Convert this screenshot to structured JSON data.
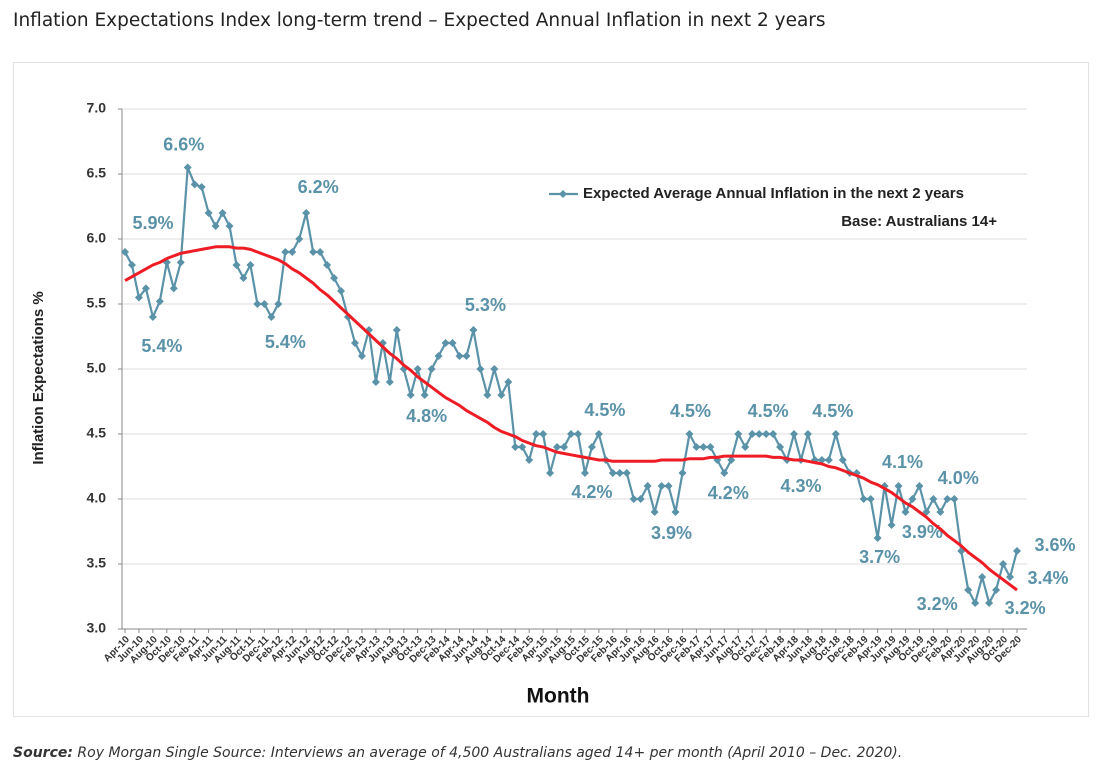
{
  "page": {
    "title": "Inflation Expectations Index long-term trend – Expected Annual Inflation in next 2 years",
    "source_label": "Source:",
    "source_text": "Roy Morgan Single Source: Interviews an average of 4,500 Australians aged 14+ per month (April 2010 – Dec. 2020)."
  },
  "chart_data": {
    "type": "line",
    "annotation": "Base: Australians 14+",
    "xlabel": "Month",
    "ylabel": "Inflation Expectations %",
    "legend": "upper right",
    "grid": true,
    "ylim": [
      3,
      7
    ],
    "yticks": [
      {
        "value": 3,
        "label": "3.0"
      },
      {
        "value": 3.5,
        "label": "3.5"
      },
      {
        "value": 4,
        "label": "4.0"
      },
      {
        "value": 4.5,
        "label": "4.5"
      },
      {
        "value": 5,
        "label": "5.0"
      },
      {
        "value": 5.5,
        "label": "5.5"
      },
      {
        "value": 6,
        "label": "6.0"
      },
      {
        "value": 6.5,
        "label": "6.5"
      },
      {
        "value": 7,
        "label": "7.0"
      }
    ],
    "categories": [
      "Apr-10",
      null,
      "Jun-10",
      null,
      "Aug-10",
      null,
      "Oct-10",
      null,
      "Dec-10",
      null,
      "Feb-11",
      null,
      "Apr-11",
      null,
      "Jun-11",
      null,
      "Aug-11",
      null,
      "Oct-11",
      null,
      "Dec-11",
      null,
      "Feb-12",
      null,
      "Apr-12",
      null,
      "Jun-12",
      null,
      "Aug-12",
      null,
      "Oct-12",
      null,
      "Dec-12",
      null,
      "Feb-13",
      null,
      "Apr-13",
      null,
      "Jun-13",
      null,
      "Aug-13",
      null,
      "Oct-13",
      null,
      "Dec-13",
      null,
      "Feb-14",
      null,
      "Apr-14",
      null,
      "Jun-14",
      null,
      "Aug-14",
      null,
      "Oct-14",
      null,
      "Dec-14",
      null,
      "Feb-15",
      null,
      "Apr-15",
      null,
      "Jun-15",
      null,
      "Aug-15",
      null,
      "Oct-15",
      null,
      "Dec-15",
      null,
      "Feb-16",
      null,
      "Apr-16",
      null,
      "Jun-16",
      null,
      "Aug-16",
      null,
      "Oct-16",
      null,
      "Dec-16",
      null,
      "Feb-17",
      null,
      "Apr-17",
      null,
      "Jun-17",
      null,
      "Aug-17",
      null,
      "Oct-17",
      null,
      "Dec-17",
      null,
      "Feb-18",
      null,
      "Apr-18",
      null,
      "Jun-18",
      null,
      "Aug-18",
      null,
      "Oct-18",
      null,
      "Dec-18",
      null,
      "Feb-19",
      null,
      "Apr-19",
      null,
      "Jun-19",
      null,
      "Aug-19",
      null,
      "Oct-19",
      null,
      "Dec-19",
      null,
      "Feb-20",
      null,
      "Apr-20",
      null,
      "Jun-20",
      null,
      "Aug-20",
      null,
      "Oct-20",
      null,
      "Dec-20"
    ],
    "series": [
      {
        "name": "Expected Average Annual Inflation in the next 2 years",
        "color": "#5a92a8",
        "values": [
          5.9,
          5.8,
          5.55,
          5.62,
          5.4,
          5.52,
          5.82,
          5.62,
          5.82,
          6.55,
          6.42,
          6.4,
          6.2,
          6.1,
          6.2,
          6.1,
          5.8,
          5.7,
          5.8,
          5.5,
          5.5,
          5.4,
          5.5,
          5.9,
          5.9,
          6.0,
          6.2,
          5.9,
          5.9,
          5.8,
          5.7,
          5.6,
          5.4,
          5.2,
          5.1,
          5.3,
          4.9,
          5.2,
          4.9,
          5.3,
          5.0,
          4.8,
          5.0,
          4.8,
          5.0,
          5.1,
          5.2,
          5.2,
          5.1,
          5.1,
          5.3,
          5.0,
          4.8,
          5.0,
          4.8,
          4.9,
          4.4,
          4.4,
          4.3,
          4.5,
          4.5,
          4.2,
          4.4,
          4.4,
          4.5,
          4.5,
          4.2,
          4.4,
          4.5,
          4.3,
          4.2,
          4.2,
          4.2,
          4.0,
          4.0,
          4.1,
          3.9,
          4.1,
          4.1,
          3.9,
          4.2,
          4.5,
          4.4,
          4.4,
          4.4,
          4.3,
          4.2,
          4.3,
          4.5,
          4.4,
          4.5,
          4.5,
          4.5,
          4.5,
          4.4,
          4.3,
          4.5,
          4.3,
          4.5,
          4.3,
          4.3,
          4.3,
          4.5,
          4.3,
          4.2,
          4.2,
          4.0,
          4.0,
          3.7,
          4.1,
          3.8,
          4.1,
          3.9,
          4.0,
          4.1,
          3.9,
          4.0,
          3.9,
          4.0,
          4.0,
          3.6,
          3.3,
          3.2,
          3.4,
          3.2,
          3.3,
          3.5,
          3.4,
          3.6
        ],
        "value_labels": [
          "5.9%",
          null,
          null,
          null,
          "5.4%",
          null,
          null,
          null,
          null,
          "6.6%",
          null,
          null,
          null,
          null,
          null,
          null,
          null,
          null,
          null,
          null,
          null,
          "5.4%",
          null,
          null,
          null,
          null,
          "6.2%",
          null,
          null,
          null,
          null,
          null,
          null,
          null,
          null,
          null,
          null,
          null,
          null,
          null,
          null,
          null,
          null,
          "4.8%",
          null,
          null,
          null,
          null,
          null,
          null,
          "5.3%",
          null,
          null,
          null,
          null,
          null,
          null,
          null,
          null,
          null,
          null,
          null,
          null,
          null,
          null,
          null,
          "4.2%",
          null,
          "4.5%",
          null,
          null,
          null,
          null,
          null,
          null,
          null,
          null,
          null,
          null,
          "3.9%",
          null,
          "4.5%",
          null,
          null,
          null,
          null,
          "4.2%",
          null,
          null,
          null,
          null,
          null,
          "4.5%",
          null,
          null,
          null,
          null,
          "4.3%",
          null,
          null,
          null,
          null,
          "4.5%",
          null,
          null,
          null,
          null,
          null,
          "3.7%",
          null,
          null,
          "4.1%",
          null,
          null,
          null,
          "3.9%",
          null,
          null,
          "4.0%",
          null,
          null,
          null,
          "3.2%",
          null,
          "3.2%",
          null,
          null,
          "3.4%",
          "3.6%"
        ]
      },
      {
        "color": "#ee1c25",
        "values": [
          5.68,
          5.71,
          5.74,
          5.77,
          5.8,
          5.82,
          5.85,
          5.87,
          5.89,
          5.9,
          5.91,
          5.92,
          5.93,
          5.94,
          5.94,
          5.94,
          5.93,
          5.93,
          5.92,
          5.9,
          5.88,
          5.86,
          5.84,
          5.81,
          5.77,
          5.74,
          5.7,
          5.66,
          5.61,
          5.57,
          5.52,
          5.47,
          5.42,
          5.37,
          5.32,
          5.27,
          5.22,
          5.17,
          5.12,
          5.08,
          5.03,
          4.99,
          4.94,
          4.9,
          4.86,
          4.82,
          4.78,
          4.75,
          4.72,
          4.68,
          4.65,
          4.62,
          4.59,
          4.55,
          4.52,
          4.5,
          4.48,
          4.45,
          4.43,
          4.41,
          4.4,
          4.38,
          4.36,
          4.35,
          4.34,
          4.33,
          4.32,
          4.31,
          4.3,
          4.3,
          4.29,
          4.29,
          4.29,
          4.29,
          4.29,
          4.29,
          4.29,
          4.3,
          4.3,
          4.3,
          4.3,
          4.31,
          4.31,
          4.31,
          4.32,
          4.32,
          4.33,
          4.33,
          4.33,
          4.33,
          4.33,
          4.33,
          4.33,
          4.32,
          4.32,
          4.31,
          4.3,
          4.3,
          4.29,
          4.28,
          4.27,
          4.25,
          4.24,
          4.22,
          4.2,
          4.18,
          4.16,
          4.13,
          4.11,
          4.08,
          4.05,
          4.01,
          3.97,
          3.94,
          3.9,
          3.86,
          3.81,
          3.77,
          3.72,
          3.68,
          3.64,
          3.59,
          3.55,
          3.51,
          3.46,
          3.42,
          3.38,
          3.34,
          3.3
        ]
      }
    ]
  }
}
